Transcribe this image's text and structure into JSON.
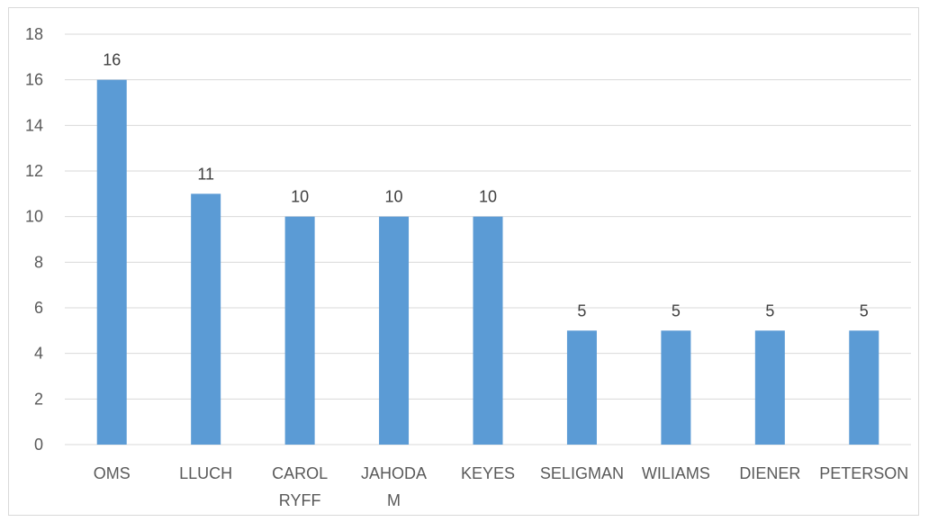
{
  "chart_data": {
    "type": "bar",
    "categories": [
      "OMS",
      "LLUCH",
      "CAROL RYFF",
      "JAHODA M",
      "KEYES",
      "SELIGMAN",
      "WILIAMS",
      "DIENER",
      "PETERSON"
    ],
    "category_lines": [
      [
        "OMS"
      ],
      [
        "LLUCH"
      ],
      [
        "CAROL",
        "RYFF"
      ],
      [
        "JAHODA",
        "M"
      ],
      [
        "KEYES"
      ],
      [
        "SELIGMAN"
      ],
      [
        "WILIAMS"
      ],
      [
        "DIENER"
      ],
      [
        "PETERSON"
      ]
    ],
    "values": [
      16,
      11,
      10,
      10,
      10,
      5,
      5,
      5,
      5
    ],
    "data_labels": [
      "16",
      "11",
      "10",
      "10",
      "10",
      "5",
      "5",
      "5",
      "5"
    ],
    "y_ticks": [
      "0",
      "2",
      "4",
      "6",
      "8",
      "10",
      "12",
      "14",
      "16",
      "18"
    ],
    "ylim": [
      0,
      18
    ],
    "grid": true,
    "bar_color": "#5b9bd5",
    "grid_color": "#d9d9d9"
  }
}
